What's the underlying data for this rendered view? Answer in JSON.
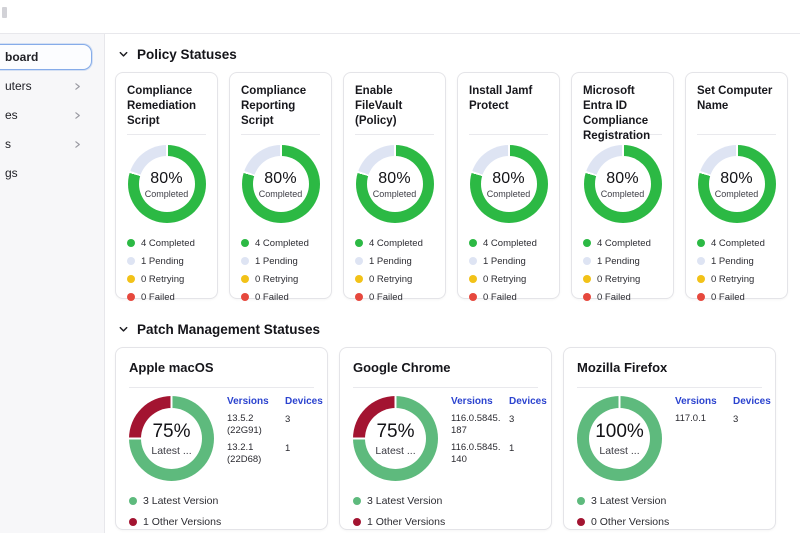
{
  "topbar": {
    "logo_fragment": "partial-logo"
  },
  "sidebar": {
    "items": [
      {
        "label": "board",
        "selected": true,
        "has_chevron": false
      },
      {
        "label": "uters",
        "selected": false,
        "has_chevron": true
      },
      {
        "label": "es",
        "selected": false,
        "has_chevron": true
      },
      {
        "label": "s",
        "selected": false,
        "has_chevron": true
      },
      {
        "label": "gs",
        "selected": false,
        "has_chevron": false
      }
    ]
  },
  "colors": {
    "policy_green": "#2cb944",
    "pending_lavender": "#dee4f3",
    "retry_yellow": "#f2c218",
    "failed_red": "#e6483d",
    "patch_green": "#5eba7d",
    "patch_red": "#a31431",
    "link_blue": "#2b43cf"
  },
  "policy_section": {
    "title": "Policy Statuses",
    "cards": [
      {
        "title": "Compliance Remediation Script",
        "percent": "80%",
        "center_label": "Completed",
        "segments": [
          {
            "color_key": "policy_green",
            "value": 80
          },
          {
            "color_key": "pending_lavender",
            "value": 20
          }
        ],
        "legend": [
          {
            "text": "4 Completed",
            "color_key": "policy_green"
          },
          {
            "text": "1 Pending",
            "color_key": "pending_lavender"
          },
          {
            "text": "0 Retrying",
            "color_key": "retry_yellow"
          },
          {
            "text": "0 Failed",
            "color_key": "failed_red"
          }
        ]
      },
      {
        "title": "Compliance Reporting Script",
        "percent": "80%",
        "center_label": "Completed",
        "segments": [
          {
            "color_key": "policy_green",
            "value": 80
          },
          {
            "color_key": "pending_lavender",
            "value": 20
          }
        ],
        "legend": [
          {
            "text": "4 Completed",
            "color_key": "policy_green"
          },
          {
            "text": "1 Pending",
            "color_key": "pending_lavender"
          },
          {
            "text": "0 Retrying",
            "color_key": "retry_yellow"
          },
          {
            "text": "0 Failed",
            "color_key": "failed_red"
          }
        ]
      },
      {
        "title": "Enable FileVault (Policy)",
        "percent": "80%",
        "center_label": "Completed",
        "segments": [
          {
            "color_key": "policy_green",
            "value": 80
          },
          {
            "color_key": "pending_lavender",
            "value": 20
          }
        ],
        "legend": [
          {
            "text": "4 Completed",
            "color_key": "policy_green"
          },
          {
            "text": "1 Pending",
            "color_key": "pending_lavender"
          },
          {
            "text": "0 Retrying",
            "color_key": "retry_yellow"
          },
          {
            "text": "0 Failed",
            "color_key": "failed_red"
          }
        ]
      },
      {
        "title": "Install Jamf Protect",
        "percent": "80%",
        "center_label": "Completed",
        "segments": [
          {
            "color_key": "policy_green",
            "value": 80
          },
          {
            "color_key": "pending_lavender",
            "value": 20
          }
        ],
        "legend": [
          {
            "text": "4 Completed",
            "color_key": "policy_green"
          },
          {
            "text": "1 Pending",
            "color_key": "pending_lavender"
          },
          {
            "text": "0 Retrying",
            "color_key": "retry_yellow"
          },
          {
            "text": "0 Failed",
            "color_key": "failed_red"
          }
        ]
      },
      {
        "title": "Microsoft Entra ID Compliance Registration",
        "percent": "80%",
        "center_label": "Completed",
        "segments": [
          {
            "color_key": "policy_green",
            "value": 80
          },
          {
            "color_key": "pending_lavender",
            "value": 20
          }
        ],
        "legend": [
          {
            "text": "4 Completed",
            "color_key": "policy_green"
          },
          {
            "text": "1 Pending",
            "color_key": "pending_lavender"
          },
          {
            "text": "0 Retrying",
            "color_key": "retry_yellow"
          },
          {
            "text": "0 Failed",
            "color_key": "failed_red"
          }
        ]
      },
      {
        "title": "Set Computer Name",
        "percent": "80%",
        "center_label": "Completed",
        "segments": [
          {
            "color_key": "policy_green",
            "value": 80
          },
          {
            "color_key": "pending_lavender",
            "value": 20
          }
        ],
        "legend": [
          {
            "text": "4 Completed",
            "color_key": "policy_green"
          },
          {
            "text": "1 Pending",
            "color_key": "pending_lavender"
          },
          {
            "text": "0 Retrying",
            "color_key": "retry_yellow"
          },
          {
            "text": "0 Failed",
            "color_key": "failed_red"
          }
        ]
      }
    ]
  },
  "patch_section": {
    "title": "Patch Management Statuses",
    "cards": [
      {
        "title": "Apple macOS",
        "percent": "75%",
        "center_label": "Latest ...",
        "segments": [
          {
            "color_key": "patch_green",
            "value": 75
          },
          {
            "color_key": "patch_red",
            "value": 25
          }
        ],
        "table": {
          "headers": [
            "Versions",
            "Devices"
          ],
          "rows": [
            {
              "version": "13.5.2 (22G91)",
              "devices": "3"
            },
            {
              "version": "13.2.1 (22D68)",
              "devices": "1"
            }
          ]
        },
        "legend": [
          {
            "text": "3 Latest Version",
            "color_key": "patch_green"
          },
          {
            "text": "1 Other Versions",
            "color_key": "patch_red"
          }
        ]
      },
      {
        "title": "Google Chrome",
        "percent": "75%",
        "center_label": "Latest ...",
        "segments": [
          {
            "color_key": "patch_green",
            "value": 75
          },
          {
            "color_key": "patch_red",
            "value": 25
          }
        ],
        "table": {
          "headers": [
            "Versions",
            "Devices"
          ],
          "rows": [
            {
              "version": "116.0.5845.187",
              "devices": "3"
            },
            {
              "version": "116.0.5845.140",
              "devices": "1"
            }
          ]
        },
        "legend": [
          {
            "text": "3 Latest Version",
            "color_key": "patch_green"
          },
          {
            "text": "1 Other Versions",
            "color_key": "patch_red"
          }
        ]
      },
      {
        "title": "Mozilla Firefox",
        "percent": "100%",
        "center_label": "Latest ...",
        "segments": [
          {
            "color_key": "patch_green",
            "value": 100
          }
        ],
        "table": {
          "headers": [
            "Versions",
            "Devices"
          ],
          "rows": [
            {
              "version": "117.0.1",
              "devices": "3"
            }
          ]
        },
        "legend": [
          {
            "text": "3 Latest Version",
            "color_key": "patch_green"
          },
          {
            "text": "0 Other Versions",
            "color_key": "patch_red"
          }
        ]
      }
    ]
  }
}
